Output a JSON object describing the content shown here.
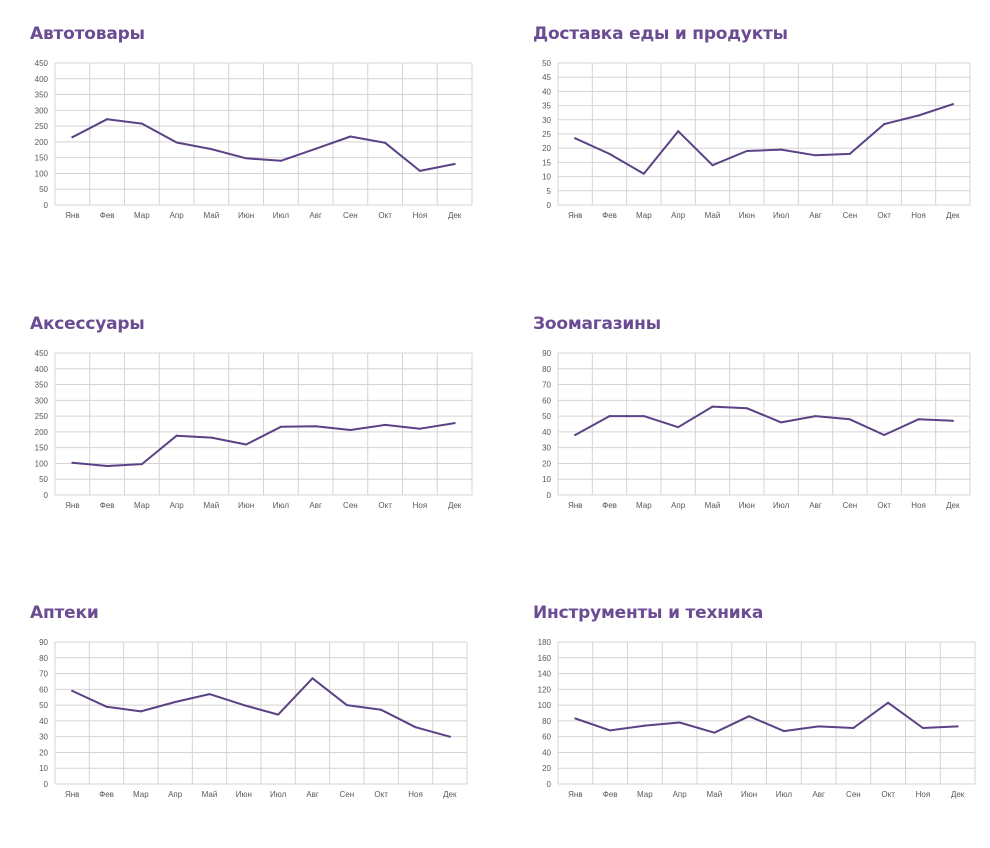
{
  "colors": {
    "title": "#6b4c93",
    "line": "#5b4285",
    "grid": "#d4d4d4",
    "axis_text": "#595959"
  },
  "chart_data": [
    {
      "type": "line",
      "title": "Автотовары",
      "categories": [
        "Янв",
        "Фев",
        "Мар",
        "Апр",
        "Май",
        "Июн",
        "Июл",
        "Авг",
        "Сен",
        "Окт",
        "Ноя",
        "Дек"
      ],
      "values": [
        215,
        272,
        258,
        198,
        177,
        148,
        140,
        178,
        217,
        197,
        108,
        130
      ],
      "ylim": [
        0,
        450
      ],
      "ystep": 50,
      "grid": true,
      "legend": "none"
    },
    {
      "type": "line",
      "title": "Доставка еды и продукты",
      "categories": [
        "Янв",
        "Фев",
        "Мар",
        "Апр",
        "Май",
        "Июн",
        "Июл",
        "Авг",
        "Сен",
        "Окт",
        "Ноя",
        "Дек"
      ],
      "values": [
        23.5,
        18,
        11,
        26,
        14,
        19,
        19.5,
        17.5,
        18,
        28.5,
        31.5,
        35.5
      ],
      "ylim": [
        0,
        50
      ],
      "ystep": 5,
      "grid": true,
      "legend": "none"
    },
    {
      "type": "line",
      "title": "Аксессуары",
      "categories": [
        "Янв",
        "Фев",
        "Мар",
        "Апр",
        "Май",
        "Июн",
        "Июл",
        "Авг",
        "Сен",
        "Окт",
        "Ноя",
        "Дек"
      ],
      "values": [
        102,
        92,
        98,
        188,
        182,
        160,
        216,
        218,
        206,
        222,
        210,
        228
      ],
      "ylim": [
        0,
        450
      ],
      "ystep": 50,
      "grid": true,
      "legend": "none"
    },
    {
      "type": "line",
      "title": "Зоомагазины",
      "categories": [
        "Янв",
        "Фев",
        "Мар",
        "Апр",
        "Май",
        "Июн",
        "Июл",
        "Авг",
        "Сен",
        "Окт",
        "Ноя",
        "Дек"
      ],
      "values": [
        38,
        50,
        50,
        43,
        56,
        55,
        46,
        50,
        48,
        38,
        48,
        47
      ],
      "ylim": [
        0,
        90
      ],
      "ystep": 10,
      "grid": true,
      "legend": "none"
    },
    {
      "type": "line",
      "title": "Аптеки",
      "categories": [
        "Янв",
        "Фев",
        "Мар",
        "Апр",
        "Май",
        "Июн",
        "Июл",
        "Авг",
        "Сен",
        "Окт",
        "Ноя",
        "Дек"
      ],
      "values": [
        59,
        49,
        46,
        52,
        57,
        50,
        44,
        67,
        50,
        47,
        36,
        30
      ],
      "ylim": [
        0,
        90
      ],
      "ystep": 10,
      "grid": true,
      "legend": "none"
    },
    {
      "type": "line",
      "title": "Инструменты и техника",
      "categories": [
        "Янв",
        "Фев",
        "Мар",
        "Апр",
        "Май",
        "Июн",
        "Июл",
        "Авг",
        "Сен",
        "Окт",
        "Ноя",
        "Дек"
      ],
      "values": [
        83,
        68,
        74,
        78,
        65,
        86,
        67,
        73,
        71,
        103,
        71,
        73
      ],
      "ylim": [
        0,
        180
      ],
      "ystep": 20,
      "grid": true,
      "legend": "none"
    }
  ]
}
